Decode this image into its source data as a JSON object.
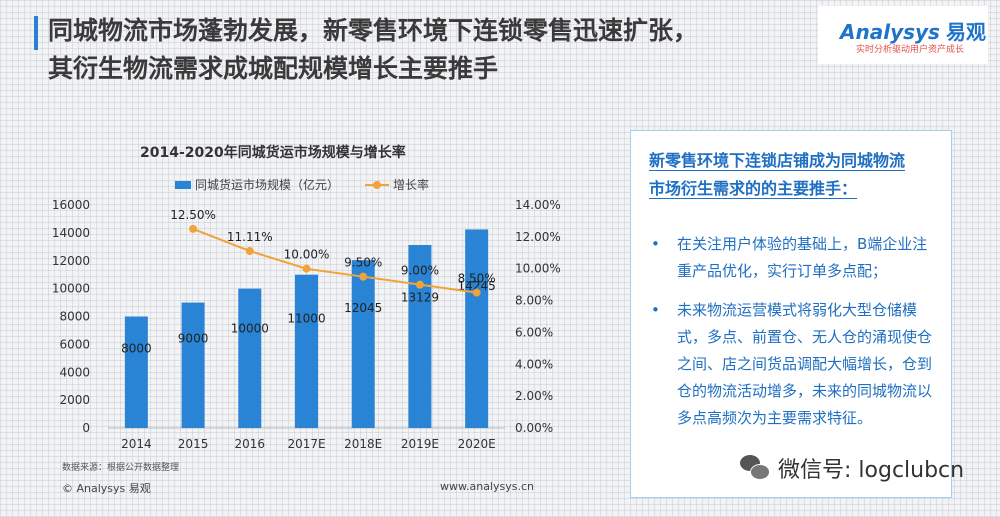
{
  "header": {
    "title_line1": "同城物流市场蓬勃发展，新零售环境下连锁零售迅速扩张，",
    "title_line2": "其衍生物流需求成城配规模增长主要推手"
  },
  "logo": {
    "brand": "Analysys",
    "brand_cn": "易观",
    "slogan": "实时分析驱动用户资产成长"
  },
  "chart_data": {
    "type": "bar",
    "title": "2014-2020年同城货运市场规模与增长率",
    "categories": [
      "2014",
      "2015",
      "2016",
      "2017E",
      "2018E",
      "2019E",
      "2020E"
    ],
    "series": [
      {
        "name": "同城货运市场规模（亿元）",
        "type": "bar",
        "axis": "left",
        "values": [
          8000,
          9000,
          10000,
          11000,
          12045,
          13129,
          14245
        ],
        "labels": [
          "8000",
          "9000",
          "10000",
          "11000",
          "12045",
          "13129",
          "14245"
        ],
        "color": "#2a84d6"
      },
      {
        "name": "增长率",
        "type": "line",
        "axis": "right",
        "values": [
          null,
          12.5,
          11.11,
          10.0,
          9.5,
          9.0,
          8.5
        ],
        "labels": [
          "",
          "12.50%",
          "11.11%",
          "10.00%",
          "9.50%",
          "9.00%",
          "8.50%"
        ],
        "color": "#f0a33a"
      }
    ],
    "y_left": {
      "min": 0,
      "max": 16000,
      "ticks": [
        "0",
        "2000",
        "4000",
        "6000",
        "8000",
        "10000",
        "12000",
        "14000",
        "16000"
      ]
    },
    "y_right": {
      "min": 0,
      "max": 14,
      "ticks": [
        "0.00%",
        "2.00%",
        "4.00%",
        "6.00%",
        "8.00%",
        "10.00%",
        "12.00%",
        "14.00%"
      ]
    },
    "grid": false,
    "legend": "top"
  },
  "footer": {
    "source": "数据来源：根据公开数据整理",
    "copyright": "© Analysys 易观",
    "website": "www.analysys.cn"
  },
  "panel": {
    "header": "新零售环境下连锁店铺成为同城物流市场衍生需求的的主要推手：",
    "bullets": [
      "在关注用户体验的基础上，B端企业注重产品优化，实行订单多点配；",
      "未来物流运营模式将弱化大型仓储模式，多点、前置仓、无人仓的涌现使仓之间、店之间货品调配大幅增长，仓到仓的物流活动增多，未来的同城物流以多点高频次为主要需求特征。"
    ]
  },
  "watermark": {
    "text": "微信号: logclubcn"
  }
}
